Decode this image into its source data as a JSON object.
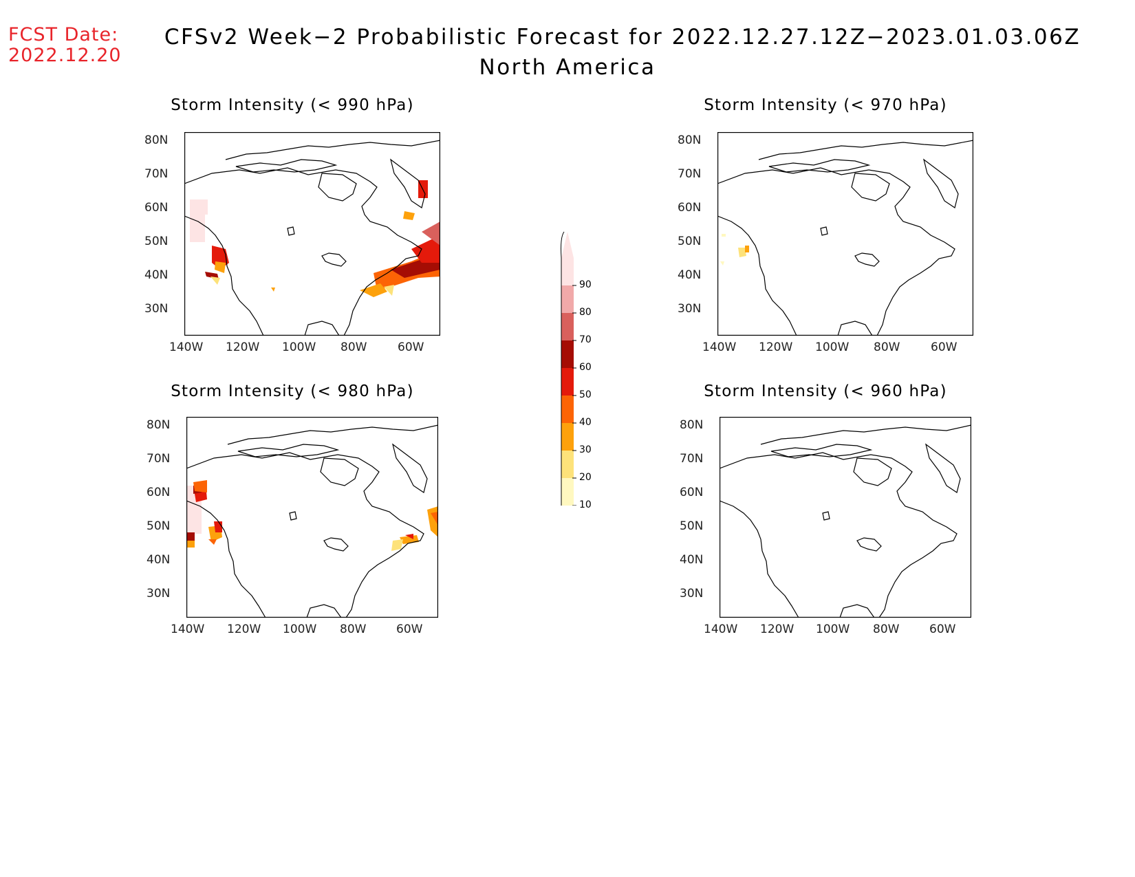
{
  "header": {
    "fcst_label": "FCST Date:",
    "fcst_date": "2022.12.20",
    "title_line1": "CFSv2 Week−2 Probabilistic Forecast for 2022.12.27.12Z−2023.01.03.06Z",
    "title_line2": "North America"
  },
  "panels": [
    {
      "title": "Storm Intensity (< 990 hPa)"
    },
    {
      "title": "Storm Intensity (< 970 hPa)"
    },
    {
      "title": "Storm Intensity (< 980 hPa)"
    },
    {
      "title": "Storm Intensity (< 960 hPa)"
    }
  ],
  "axes": {
    "lat_labels": [
      "80N",
      "70N",
      "60N",
      "50N",
      "40N",
      "30N"
    ],
    "lon_labels": [
      "140W",
      "120W",
      "100W",
      "80W",
      "60W"
    ]
  },
  "legend": {
    "levels": [
      "10",
      "20",
      "30",
      "40",
      "50",
      "60",
      "70",
      "80",
      "90"
    ],
    "colors": [
      "#fff8c0",
      "#fde27a",
      "#fda10c",
      "#fc6405",
      "#e41a0b",
      "#a50d04",
      "#d9605c",
      "#f1a9a9",
      "#fde4e4"
    ]
  }
}
